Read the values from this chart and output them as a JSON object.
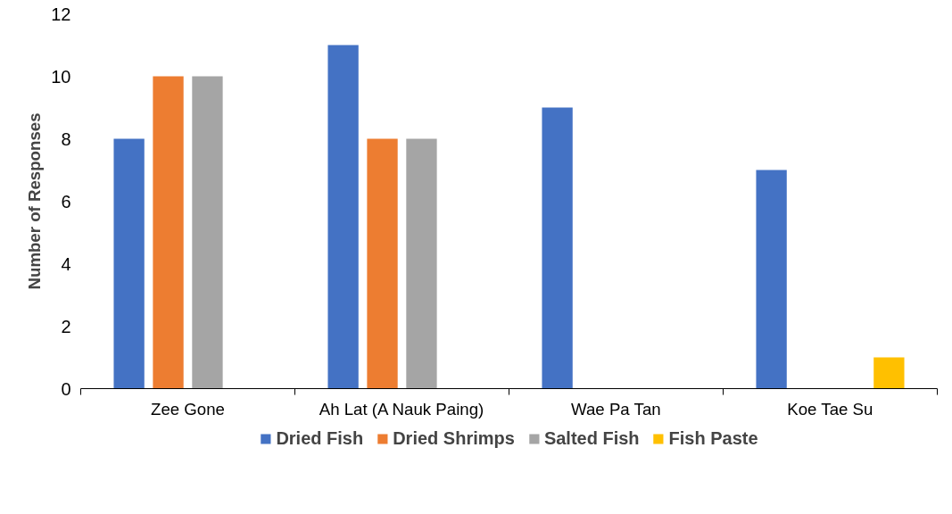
{
  "chart_data": {
    "type": "bar",
    "ylabel": "Number of Responses",
    "categories": [
      "Zee Gone",
      "Ah Lat (A Nauk Paing)",
      "Wae Pa Tan",
      "Koe Tae Su"
    ],
    "series": [
      {
        "name": "Dried Fish",
        "color": "#4472c4",
        "values": [
          8,
          11,
          9,
          7
        ]
      },
      {
        "name": "Dried Shrimps",
        "color": "#ed7d31",
        "values": [
          10,
          8,
          null,
          null
        ]
      },
      {
        "name": "Salted Fish",
        "color": "#a5a5a5",
        "values": [
          10,
          8,
          null,
          null
        ]
      },
      {
        "name": "Fish Paste",
        "color": "#ffc000",
        "values": [
          null,
          null,
          null,
          1
        ]
      }
    ],
    "ylim": [
      0,
      12
    ],
    "yticks": [
      0,
      2,
      4,
      6,
      8,
      10,
      12
    ],
    "grid": false,
    "legend": "bottom"
  }
}
